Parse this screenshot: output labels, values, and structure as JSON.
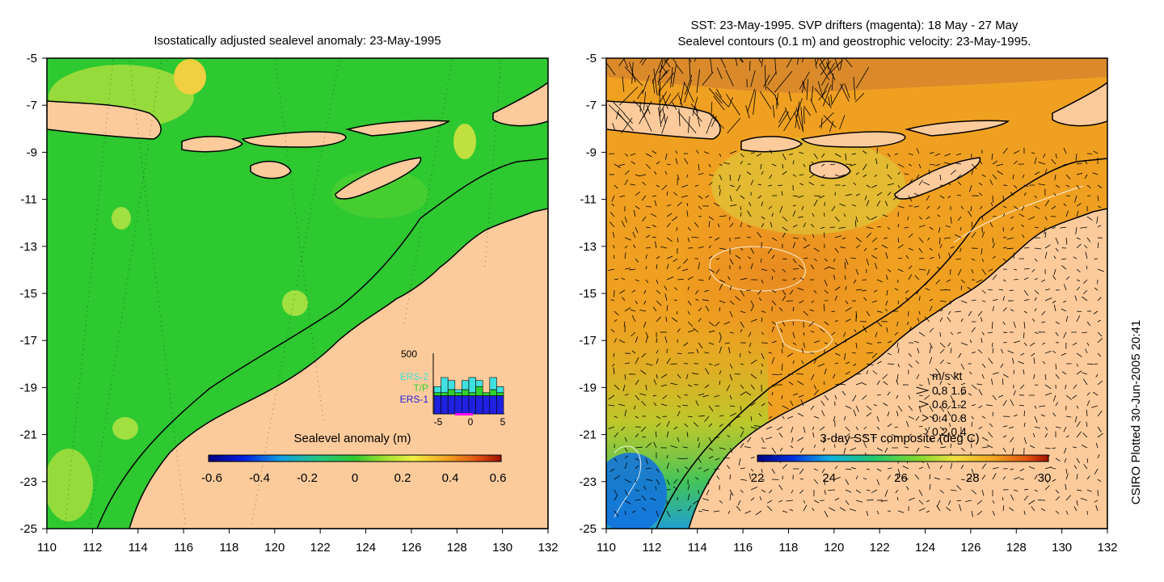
{
  "left_panel": {
    "title": "Isostatically adjusted sealevel anomaly: 23-May-1995",
    "y_ticks": [
      "-5",
      "-7",
      "-9",
      "-11",
      "-13",
      "-15",
      "-17",
      "-19",
      "-21",
      "-23",
      "-25"
    ],
    "x_ticks": [
      "110",
      "112",
      "114",
      "116",
      "118",
      "120",
      "122",
      "124",
      "126",
      "128",
      "130",
      "132"
    ],
    "colorbar": {
      "label": "Sealevel anomaly (m)",
      "ticks": [
        "-0.6",
        "-0.4",
        "-0.2",
        "0",
        "0.2",
        "0.4",
        "0.6"
      ]
    },
    "histogram": {
      "y_max_label": "500",
      "legend": [
        "ERS-2",
        "T/P",
        "ERS-1"
      ],
      "legend_colors": [
        "#40e0e0",
        "#30d030",
        "#2020e0"
      ],
      "x_ticks": [
        "-5",
        "0",
        "5"
      ],
      "bars": [
        {
          "ers1": 0.3,
          "tp": 0.35,
          "ers2": 0.45
        },
        {
          "ers1": 0.3,
          "tp": 0.35,
          "ers2": 0.6
        },
        {
          "ers1": 0.3,
          "tp": 0.4,
          "ers2": 0.55
        },
        {
          "ers1": 0.3,
          "tp": 0.35,
          "ers2": 0.4
        },
        {
          "ers1": 0.3,
          "tp": 0.4,
          "ers2": 0.55
        },
        {
          "ers1": 0.3,
          "tp": 0.35,
          "ers2": 0.6
        },
        {
          "ers1": 0.3,
          "tp": 0.45,
          "ers2": 0.55
        },
        {
          "ers1": 0.3,
          "tp": 0.35,
          "ers2": 0.35
        },
        {
          "ers1": 0.3,
          "tp": 0.4,
          "ers2": 0.6
        },
        {
          "ers1": 0.3,
          "tp": 0.35,
          "ers2": 0.45
        }
      ]
    }
  },
  "right_panel": {
    "title_line1": "SST: 23-May-1995. SVP drifters (magenta): 18 May - 27 May",
    "title_line2": "Sealevel contours (0.1 m) and geostrophic velocity: 23-May-1995.",
    "y_ticks": [
      "-5",
      "-7",
      "-9",
      "-11",
      "-13",
      "-15",
      "-17",
      "-19",
      "-21",
      "-23",
      "-25"
    ],
    "x_ticks": [
      "110",
      "112",
      "114",
      "116",
      "118",
      "120",
      "122",
      "124",
      "126",
      "128",
      "130",
      "132"
    ],
    "colorbar": {
      "label": "3-day SST composite (deg C)",
      "ticks": [
        "22",
        "24",
        "26",
        "28",
        "30"
      ]
    },
    "velocity_key": {
      "header": "m/s  kt",
      "rows": [
        "0.8  1.6",
        "0.6  1.2",
        "0.4  0.8",
        "0.2  0.4"
      ],
      "arrow_magnitudes_ms": [
        0.8,
        0.6,
        0.4,
        0.2
      ]
    }
  },
  "credit": "CSIRO Plotted 30-Jun-2005 20:41",
  "colors": {
    "land": "#fdcb9b",
    "ocean_sla": "#2ec830",
    "ocean_sst": "#f0a020",
    "coastline": "#000000"
  }
}
